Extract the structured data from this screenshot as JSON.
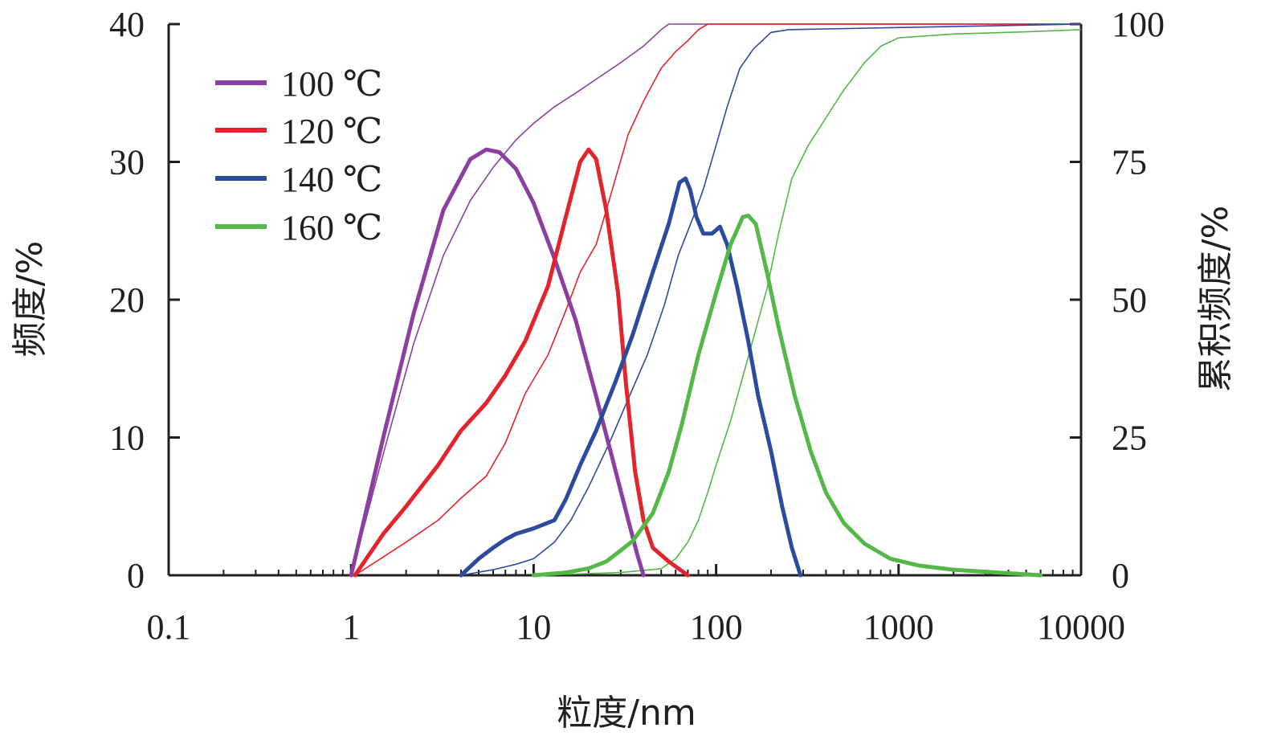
{
  "chart_data": {
    "type": "line",
    "xlabel": "粒度/nm",
    "ylabel_left": "频度/%",
    "ylabel_right": "累积频度/%",
    "x_scale": "log",
    "xlim": [
      0.1,
      10000
    ],
    "ylim_left": [
      0,
      40
    ],
    "ylim_right": [
      0,
      100
    ],
    "x_ticks": [
      {
        "value": 0.1,
        "label": "0.1"
      },
      {
        "value": 1,
        "label": "1"
      },
      {
        "value": 10,
        "label": "10"
      },
      {
        "value": 100,
        "label": "100"
      },
      {
        "value": 1000,
        "label": "1000"
      },
      {
        "value": 10000,
        "label": "10000"
      }
    ],
    "y_ticks_left": [
      {
        "value": 0,
        "label": "0"
      },
      {
        "value": 10,
        "label": "10"
      },
      {
        "value": 20,
        "label": "20"
      },
      {
        "value": 30,
        "label": "30"
      },
      {
        "value": 40,
        "label": "40"
      }
    ],
    "y_ticks_right": [
      {
        "value": 0,
        "label": "0"
      },
      {
        "value": 25,
        "label": "25"
      },
      {
        "value": 50,
        "label": "50"
      },
      {
        "value": 75,
        "label": "75"
      },
      {
        "value": 100,
        "label": "100"
      }
    ],
    "grid": false,
    "legend_position": "top-left",
    "series": [
      {
        "name": "100 ℃",
        "color": "#8b3fa0",
        "frequency": [
          [
            1.0,
            0
          ],
          [
            1.5,
            10
          ],
          [
            2.2,
            19
          ],
          [
            3.2,
            26.5
          ],
          [
            4.5,
            30.2
          ],
          [
            5.5,
            30.9
          ],
          [
            6.5,
            30.7
          ],
          [
            8,
            29.5
          ],
          [
            10,
            27
          ],
          [
            13,
            23
          ],
          [
            17,
            18.5
          ],
          [
            22,
            13
          ],
          [
            27,
            8.5
          ],
          [
            33,
            4
          ],
          [
            37,
            1.5
          ],
          [
            40,
            0
          ]
        ],
        "cumulative": [
          [
            1.0,
            0
          ],
          [
            1.5,
            22
          ],
          [
            2.2,
            42
          ],
          [
            3.2,
            58
          ],
          [
            4.5,
            68
          ],
          [
            6,
            74
          ],
          [
            8,
            79
          ],
          [
            10,
            82
          ],
          [
            13,
            85
          ],
          [
            17,
            87.5
          ],
          [
            22,
            90
          ],
          [
            30,
            93
          ],
          [
            40,
            96
          ],
          [
            50,
            99
          ],
          [
            55,
            100
          ],
          [
            100,
            100
          ],
          [
            10000,
            100
          ]
        ]
      },
      {
        "name": "120 ℃",
        "color": "#e2242c",
        "frequency": [
          [
            1.05,
            0
          ],
          [
            1.5,
            3
          ],
          [
            2,
            5
          ],
          [
            3,
            8
          ],
          [
            4,
            10.5
          ],
          [
            5.5,
            12.5
          ],
          [
            7,
            14.5
          ],
          [
            9,
            17
          ],
          [
            12,
            21
          ],
          [
            15,
            26
          ],
          [
            18,
            30
          ],
          [
            20,
            30.9
          ],
          [
            22,
            30.2
          ],
          [
            25,
            26.5
          ],
          [
            29,
            20.5
          ],
          [
            32,
            14
          ],
          [
            36,
            7.5
          ],
          [
            40,
            4
          ],
          [
            45,
            2
          ],
          [
            55,
            1
          ],
          [
            62,
            0.5
          ],
          [
            70,
            0
          ]
        ],
        "cumulative": [
          [
            1.05,
            0
          ],
          [
            2,
            6
          ],
          [
            3,
            10
          ],
          [
            4,
            14
          ],
          [
            5.5,
            18
          ],
          [
            7,
            24
          ],
          [
            9,
            33
          ],
          [
            12,
            40
          ],
          [
            15,
            48
          ],
          [
            18,
            55
          ],
          [
            22,
            60
          ],
          [
            27,
            70
          ],
          [
            33,
            80
          ],
          [
            40,
            86
          ],
          [
            50,
            92
          ],
          [
            60,
            95
          ],
          [
            70,
            97
          ],
          [
            80,
            99
          ],
          [
            90,
            100
          ],
          [
            10000,
            100
          ]
        ]
      },
      {
        "name": "140 ℃",
        "color": "#2c4b9e",
        "frequency": [
          [
            4.0,
            0
          ],
          [
            5,
            1.2
          ],
          [
            6,
            2
          ],
          [
            7,
            2.6
          ],
          [
            8,
            3
          ],
          [
            10,
            3.4
          ],
          [
            13,
            4
          ],
          [
            15,
            5.5
          ],
          [
            18,
            8
          ],
          [
            22,
            10.5
          ],
          [
            28,
            14
          ],
          [
            35,
            17.5
          ],
          [
            45,
            22
          ],
          [
            55,
            25.5
          ],
          [
            63,
            28.5
          ],
          [
            68,
            28.8
          ],
          [
            72,
            28
          ],
          [
            78,
            26
          ],
          [
            85,
            24.8
          ],
          [
            95,
            24.8
          ],
          [
            105,
            25.3
          ],
          [
            115,
            24
          ],
          [
            130,
            21
          ],
          [
            150,
            17
          ],
          [
            170,
            13
          ],
          [
            200,
            9
          ],
          [
            230,
            5
          ],
          [
            260,
            2
          ],
          [
            290,
            0
          ]
        ],
        "cumulative": [
          [
            4.0,
            0
          ],
          [
            6,
            1
          ],
          [
            8,
            2
          ],
          [
            10,
            3
          ],
          [
            13,
            6
          ],
          [
            16,
            10
          ],
          [
            20,
            16
          ],
          [
            26,
            24
          ],
          [
            33,
            32
          ],
          [
            42,
            40
          ],
          [
            52,
            49
          ],
          [
            62,
            58
          ],
          [
            75,
            65
          ],
          [
            85,
            70
          ],
          [
            100,
            78
          ],
          [
            115,
            85
          ],
          [
            135,
            92
          ],
          [
            160,
            95.5
          ],
          [
            200,
            98.5
          ],
          [
            250,
            99
          ],
          [
            10000,
            100
          ]
        ]
      },
      {
        "name": "160 ℃",
        "color": "#53b848",
        "frequency": [
          [
            10,
            0
          ],
          [
            15,
            0.2
          ],
          [
            20,
            0.5
          ],
          [
            25,
            1
          ],
          [
            30,
            1.8
          ],
          [
            35,
            2.5
          ],
          [
            45,
            4.5
          ],
          [
            55,
            7.5
          ],
          [
            65,
            11
          ],
          [
            80,
            16
          ],
          [
            100,
            20.5
          ],
          [
            120,
            24
          ],
          [
            140,
            26
          ],
          [
            150,
            26.1
          ],
          [
            165,
            25.5
          ],
          [
            190,
            22
          ],
          [
            220,
            18
          ],
          [
            270,
            13
          ],
          [
            330,
            9
          ],
          [
            400,
            6
          ],
          [
            500,
            3.8
          ],
          [
            650,
            2.3
          ],
          [
            900,
            1.2
          ],
          [
            1300,
            0.7
          ],
          [
            2000,
            0.4
          ],
          [
            3500,
            0.2
          ],
          [
            6000,
            0
          ]
        ],
        "cumulative": [
          [
            10,
            0
          ],
          [
            30,
            0.5
          ],
          [
            50,
            1.2
          ],
          [
            60,
            3
          ],
          [
            70,
            6
          ],
          [
            80,
            10
          ],
          [
            90,
            15
          ],
          [
            100,
            20
          ],
          [
            120,
            28
          ],
          [
            140,
            36
          ],
          [
            160,
            43
          ],
          [
            190,
            52
          ],
          [
            220,
            62
          ],
          [
            260,
            72
          ],
          [
            320,
            78
          ],
          [
            400,
            83
          ],
          [
            500,
            88
          ],
          [
            650,
            93
          ],
          [
            800,
            96
          ],
          [
            1000,
            97.5
          ],
          [
            2000,
            98.2
          ],
          [
            5000,
            98.6
          ],
          [
            10000,
            99
          ]
        ]
      }
    ]
  }
}
